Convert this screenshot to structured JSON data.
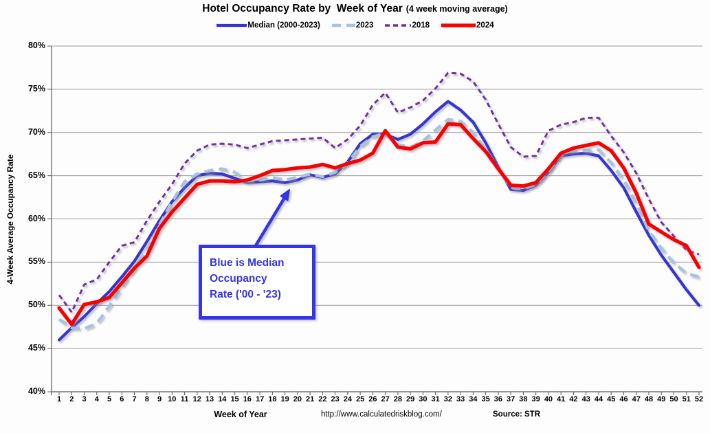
{
  "title": {
    "main": "Hotel Occupancy Rate by  Week of Year",
    "paren": "(4 week moving average)"
  },
  "y_axis": {
    "label": "4-Week Average Occupancy Rate"
  },
  "x_axis": {
    "label": "Week of Year"
  },
  "footer": {
    "url": "http://www.calculatedriskblog.com/",
    "source": "Source: STR"
  },
  "annotation": {
    "line1": "Blue is Median",
    "line2": "Occupancy",
    "line3": "Rate ('00 - '23)",
    "color": "#3434e8"
  },
  "chart_data": {
    "type": "line",
    "x": [
      1,
      2,
      3,
      4,
      5,
      6,
      7,
      8,
      9,
      10,
      11,
      12,
      13,
      14,
      15,
      16,
      17,
      18,
      19,
      20,
      21,
      22,
      23,
      24,
      25,
      26,
      27,
      28,
      29,
      30,
      31,
      32,
      33,
      34,
      35,
      36,
      37,
      38,
      39,
      40,
      41,
      42,
      43,
      44,
      45,
      46,
      47,
      48,
      49,
      50,
      51,
      52
    ],
    "xlim": [
      1,
      52
    ],
    "ylim": [
      40,
      80
    ],
    "y_tick_step": 5,
    "y_tick_labels": [
      "80%",
      "75%",
      "70%",
      "65%",
      "60%",
      "55%",
      "50%",
      "45%",
      "40%"
    ],
    "grid": true,
    "legend_position": "top",
    "series": [
      {
        "name": "Median (2000-2023)",
        "color": "#3434cf",
        "style": "solid",
        "width": 4.2,
        "values": [
          46.0,
          47.4,
          48.7,
          50.2,
          51.6,
          53.3,
          55.1,
          57.4,
          59.8,
          62.0,
          63.6,
          65.0,
          65.3,
          65.2,
          64.7,
          64.2,
          64.3,
          64.4,
          64.2,
          64.5,
          65.1,
          64.8,
          65.2,
          66.6,
          68.7,
          69.8,
          69.8,
          69.2,
          69.8,
          71.0,
          72.4,
          73.6,
          72.6,
          71.2,
          68.8,
          66.0,
          63.4,
          63.3,
          63.9,
          65.4,
          67.3,
          67.5,
          67.6,
          67.3,
          65.6,
          63.6,
          60.8,
          58.1,
          55.8,
          53.8,
          51.8,
          50.0
        ]
      },
      {
        "name": "2023",
        "color": "#a7c3e0",
        "style": "dashed",
        "dash": "13 8",
        "width": 4.4,
        "values": [
          48.4,
          47.4,
          47.3,
          47.9,
          49.9,
          52.2,
          54.3,
          56.4,
          59.3,
          62.0,
          64.3,
          65.2,
          65.6,
          65.8,
          65.4,
          64.4,
          64.5,
          64.8,
          64.5,
          64.8,
          65.2,
          64.9,
          65.4,
          66.5,
          68.4,
          69.5,
          69.9,
          68.6,
          68.3,
          69.0,
          70.3,
          71.5,
          71.3,
          70.0,
          68.0,
          65.8,
          63.6,
          63.5,
          64.0,
          65.5,
          67.5,
          67.9,
          67.9,
          68.0,
          66.5,
          64.5,
          61.8,
          58.6,
          56.6,
          54.9,
          53.7,
          53.3
        ]
      },
      {
        "name": "2018",
        "color": "#7030a0",
        "style": "dashed",
        "dash": "7 5",
        "width": 3,
        "values": [
          51.2,
          49.2,
          52.4,
          53.0,
          55.0,
          56.9,
          57.3,
          59.8,
          62.0,
          64.0,
          66.4,
          67.9,
          68.6,
          68.7,
          68.6,
          68.2,
          68.6,
          69.0,
          69.1,
          69.2,
          69.3,
          69.4,
          68.2,
          69.2,
          70.8,
          73.2,
          74.6,
          72.3,
          72.9,
          73.7,
          75.1,
          76.9,
          76.8,
          75.9,
          73.8,
          71.0,
          68.3,
          67.2,
          67.3,
          70.2,
          70.9,
          71.2,
          71.7,
          71.7,
          69.6,
          67.7,
          65.3,
          62.3,
          59.6,
          58.0,
          56.4,
          55.9
        ]
      },
      {
        "name": "2024",
        "color": "#f70000",
        "style": "solid",
        "width": 5.2,
        "values": [
          49.7,
          47.8,
          50.1,
          50.4,
          50.9,
          52.6,
          54.3,
          55.7,
          58.9,
          60.8,
          62.4,
          64.0,
          64.4,
          64.4,
          64.3,
          64.5,
          65.0,
          65.6,
          65.7,
          65.9,
          66.0,
          66.3,
          65.9,
          66.4,
          66.8,
          67.6,
          70.2,
          68.3,
          68.1,
          68.8,
          68.9,
          71.0,
          70.9,
          69.3,
          67.8,
          65.8,
          63.9,
          63.8,
          64.2,
          65.8,
          67.6,
          68.2,
          68.5,
          68.8,
          67.9,
          65.9,
          63.0,
          59.4,
          58.5,
          57.6,
          56.9,
          54.4
        ]
      }
    ],
    "title": "Hotel Occupancy Rate by Week of Year (4 week moving average)",
    "xlabel": "Week of Year",
    "ylabel": "4-Week Average Occupancy Rate"
  }
}
